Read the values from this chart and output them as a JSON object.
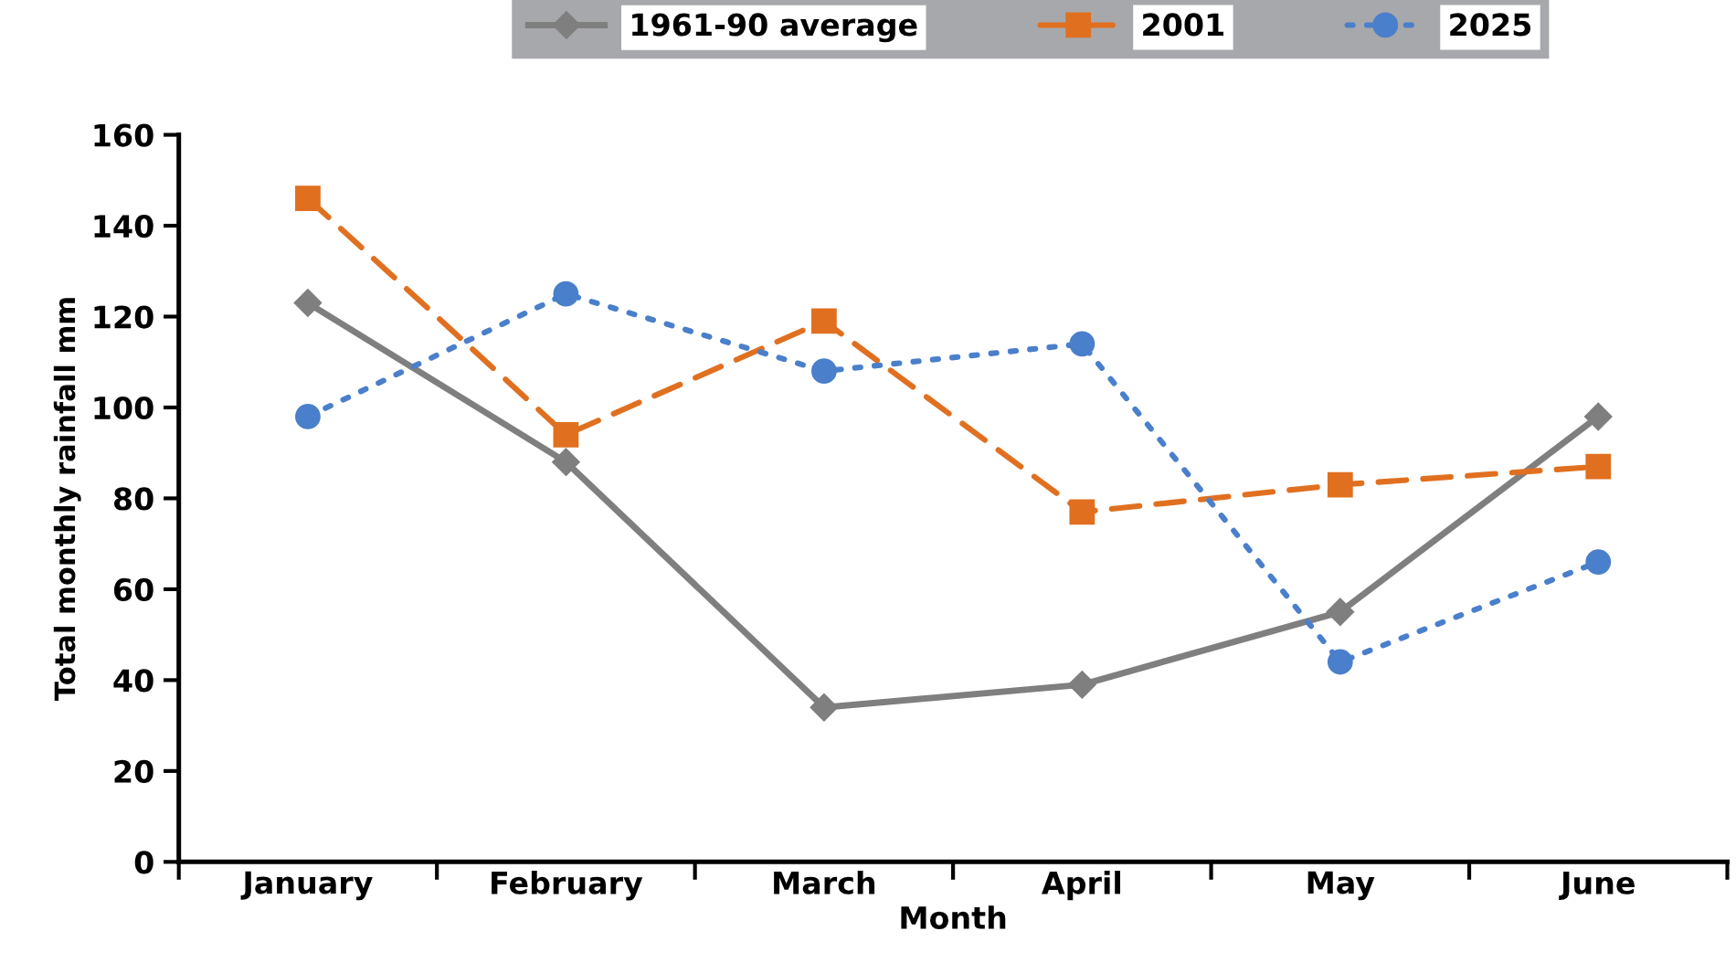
{
  "chart_data": {
    "type": "line",
    "xlabel": "Month",
    "ylabel": "Total monthly rainfall mm",
    "categories": [
      "January",
      "February",
      "March",
      "April",
      "May",
      "June"
    ],
    "series": [
      {
        "name": "1961-90 average",
        "color": "#7f7f7f",
        "marker": "diamond",
        "line_style": "solid",
        "values": [
          123,
          88,
          34,
          39,
          55,
          98
        ]
      },
      {
        "name": "2001",
        "color": "#e07020",
        "marker": "square",
        "line_style": "dashed",
        "values": [
          146,
          94,
          119,
          77,
          83,
          87
        ]
      },
      {
        "name": "2025",
        "color": "#4a7fcb",
        "marker": "circle",
        "line_style": "dotted",
        "values": [
          98,
          125,
          108,
          114,
          44,
          66
        ]
      }
    ],
    "ylim": [
      0,
      160
    ],
    "yticks": [
      0,
      20,
      40,
      60,
      80,
      100,
      120,
      140,
      160
    ],
    "grid": false,
    "legend": "top"
  }
}
